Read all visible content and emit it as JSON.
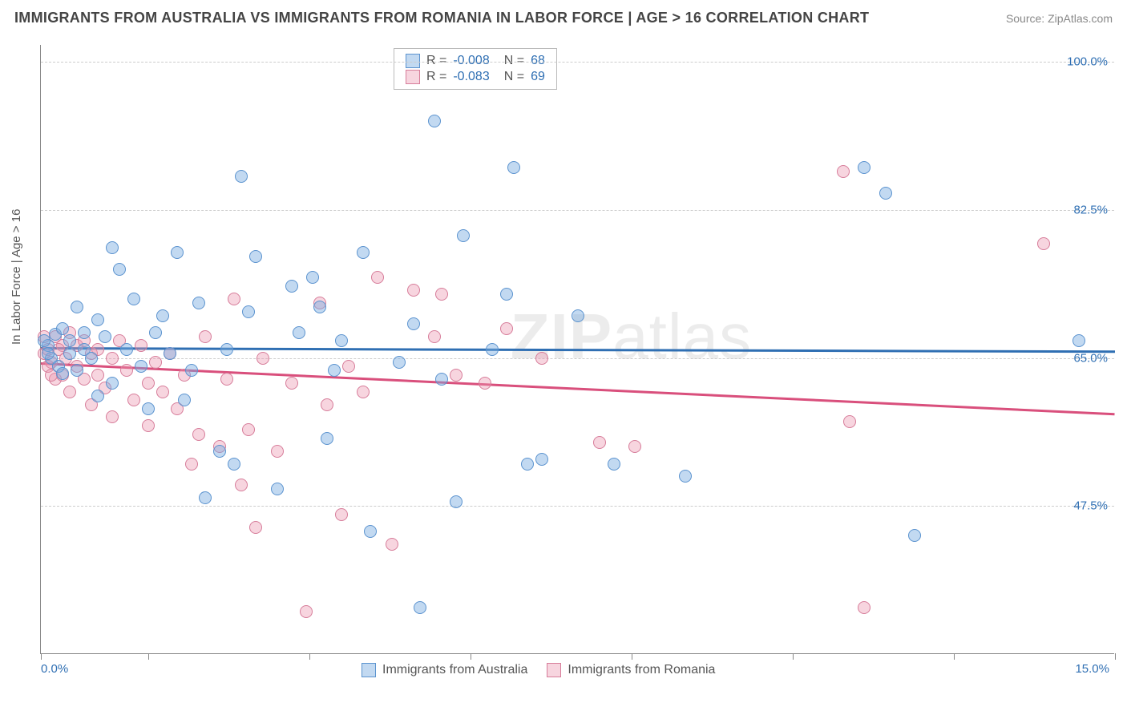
{
  "header": {
    "title": "IMMIGRANTS FROM AUSTRALIA VS IMMIGRANTS FROM ROMANIA IN LABOR FORCE | AGE > 16 CORRELATION CHART",
    "source": "Source: ZipAtlas.com"
  },
  "chart": {
    "type": "scatter",
    "ylabel": "In Labor Force | Age > 16",
    "xlim": [
      0,
      15
    ],
    "ylim": [
      30,
      102
    ],
    "x_axis": {
      "min_label": "0.0%",
      "max_label": "15.0%",
      "tick_positions_pct": [
        0,
        10,
        25,
        40,
        55,
        70,
        85,
        100
      ]
    },
    "y_axis": {
      "gridlines": [
        {
          "value": 100.0,
          "label": "100.0%"
        },
        {
          "value": 82.5,
          "label": "82.5%"
        },
        {
          "value": 65.0,
          "label": "65.0%"
        },
        {
          "value": 47.5,
          "label": "47.5%"
        }
      ]
    },
    "watermark": "ZIPatlas",
    "colors": {
      "series_a_fill": "rgba(120,170,225,0.45)",
      "series_a_stroke": "#5b93cf",
      "series_a_line": "#2f6fb3",
      "series_b_fill": "rgba(235,150,175,0.40)",
      "series_b_stroke": "#d77d9a",
      "series_b_line": "#d94f7c",
      "axis_label": "#2f6fb3",
      "grid": "#cccccc",
      "text": "#555555"
    },
    "stats": {
      "a": {
        "R": "-0.008",
        "N": "68"
      },
      "b": {
        "R": "-0.083",
        "N": "69"
      }
    },
    "legend": {
      "a": "Immigrants from Australia",
      "b": "Immigrants from Romania"
    },
    "trendlines": {
      "a": {
        "y_start": 66.3,
        "y_end": 65.9
      },
      "b": {
        "y_start": 64.5,
        "y_end": 58.5
      }
    },
    "series_a": [
      [
        0.1,
        66.5
      ],
      [
        0.15,
        65.0
      ],
      [
        0.2,
        67.8
      ],
      [
        0.25,
        64.0
      ],
      [
        0.3,
        68.5
      ],
      [
        0.3,
        63.2
      ],
      [
        0.4,
        65.5
      ],
      [
        0.4,
        67.0
      ],
      [
        0.5,
        71.0
      ],
      [
        0.5,
        63.5
      ],
      [
        0.6,
        68.0
      ],
      [
        0.6,
        66.0
      ],
      [
        0.7,
        65.0
      ],
      [
        0.8,
        69.5
      ],
      [
        0.8,
        60.5
      ],
      [
        0.9,
        67.5
      ],
      [
        1.0,
        78.0
      ],
      [
        1.0,
        62.0
      ],
      [
        1.1,
        75.5
      ],
      [
        1.2,
        66.0
      ],
      [
        1.3,
        72.0
      ],
      [
        1.4,
        64.0
      ],
      [
        1.5,
        59.0
      ],
      [
        1.6,
        68.0
      ],
      [
        1.7,
        70.0
      ],
      [
        1.8,
        65.5
      ],
      [
        1.9,
        77.5
      ],
      [
        2.0,
        60.0
      ],
      [
        2.1,
        63.5
      ],
      [
        2.2,
        71.5
      ],
      [
        2.3,
        48.5
      ],
      [
        2.5,
        54.0
      ],
      [
        2.6,
        66.0
      ],
      [
        2.7,
        52.5
      ],
      [
        2.8,
        86.5
      ],
      [
        2.9,
        70.5
      ],
      [
        3.0,
        77.0
      ],
      [
        3.3,
        49.5
      ],
      [
        3.5,
        73.5
      ],
      [
        3.6,
        68.0
      ],
      [
        3.8,
        74.5
      ],
      [
        3.9,
        71.0
      ],
      [
        4.0,
        55.5
      ],
      [
        4.1,
        63.5
      ],
      [
        4.2,
        67.0
      ],
      [
        4.5,
        77.5
      ],
      [
        4.6,
        44.5
      ],
      [
        5.0,
        64.5
      ],
      [
        5.2,
        69.0
      ],
      [
        5.3,
        35.5
      ],
      [
        5.5,
        93.0
      ],
      [
        5.6,
        62.5
      ],
      [
        5.8,
        48.0
      ],
      [
        5.9,
        79.5
      ],
      [
        6.3,
        66.0
      ],
      [
        6.5,
        72.5
      ],
      [
        6.6,
        87.5
      ],
      [
        6.8,
        52.5
      ],
      [
        7.0,
        53.0
      ],
      [
        7.5,
        70.0
      ],
      [
        8.0,
        52.5
      ],
      [
        9.0,
        51.0
      ],
      [
        11.5,
        87.5
      ],
      [
        11.8,
        84.5
      ],
      [
        12.2,
        44.0
      ],
      [
        14.5,
        67.0
      ],
      [
        0.1,
        65.5
      ],
      [
        0.05,
        67.0
      ]
    ],
    "series_b": [
      [
        0.05,
        65.5
      ],
      [
        0.1,
        66.0
      ],
      [
        0.15,
        64.5
      ],
      [
        0.2,
        67.5
      ],
      [
        0.2,
        62.5
      ],
      [
        0.3,
        66.5
      ],
      [
        0.3,
        63.0
      ],
      [
        0.35,
        65.0
      ],
      [
        0.4,
        68.0
      ],
      [
        0.4,
        61.0
      ],
      [
        0.5,
        66.5
      ],
      [
        0.5,
        64.0
      ],
      [
        0.6,
        67.0
      ],
      [
        0.6,
        62.5
      ],
      [
        0.7,
        65.5
      ],
      [
        0.7,
        59.5
      ],
      [
        0.8,
        63.0
      ],
      [
        0.8,
        66.0
      ],
      [
        0.9,
        61.5
      ],
      [
        1.0,
        65.0
      ],
      [
        1.0,
        58.0
      ],
      [
        1.1,
        67.0
      ],
      [
        1.2,
        63.5
      ],
      [
        1.3,
        60.0
      ],
      [
        1.4,
        66.5
      ],
      [
        1.5,
        62.0
      ],
      [
        1.5,
        57.0
      ],
      [
        1.6,
        64.5
      ],
      [
        1.7,
        61.0
      ],
      [
        1.8,
        65.5
      ],
      [
        1.9,
        59.0
      ],
      [
        2.0,
        63.0
      ],
      [
        2.1,
        52.5
      ],
      [
        2.2,
        56.0
      ],
      [
        2.3,
        67.5
      ],
      [
        2.5,
        54.5
      ],
      [
        2.6,
        62.5
      ],
      [
        2.7,
        72.0
      ],
      [
        2.8,
        50.0
      ],
      [
        2.9,
        56.5
      ],
      [
        3.0,
        45.0
      ],
      [
        3.1,
        65.0
      ],
      [
        3.3,
        54.0
      ],
      [
        3.5,
        62.0
      ],
      [
        3.7,
        35.0
      ],
      [
        3.9,
        71.5
      ],
      [
        4.0,
        59.5
      ],
      [
        4.2,
        46.5
      ],
      [
        4.3,
        64.0
      ],
      [
        4.5,
        61.0
      ],
      [
        4.7,
        74.5
      ],
      [
        4.9,
        43.0
      ],
      [
        5.2,
        73.0
      ],
      [
        5.5,
        67.5
      ],
      [
        5.6,
        72.5
      ],
      [
        5.8,
        63.0
      ],
      [
        6.2,
        62.0
      ],
      [
        6.5,
        68.5
      ],
      [
        7.0,
        65.0
      ],
      [
        7.8,
        55.0
      ],
      [
        8.3,
        54.5
      ],
      [
        11.2,
        87.0
      ],
      [
        11.3,
        57.5
      ],
      [
        11.5,
        35.5
      ],
      [
        14.0,
        78.5
      ],
      [
        0.05,
        67.5
      ],
      [
        0.1,
        64.0
      ],
      [
        0.15,
        63.0
      ],
      [
        0.25,
        66.0
      ]
    ]
  }
}
